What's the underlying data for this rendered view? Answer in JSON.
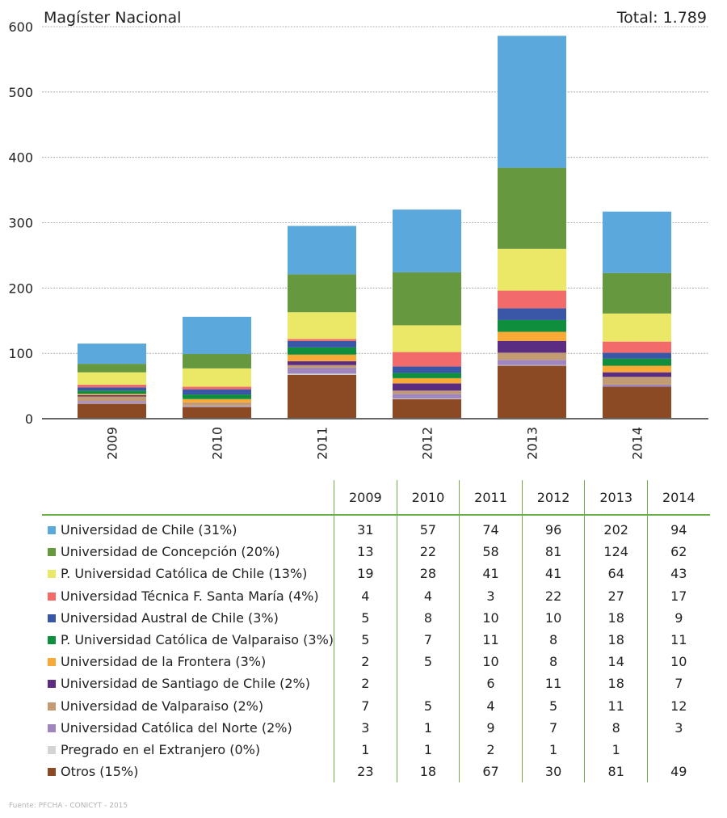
{
  "chart_data": {
    "type": "bar",
    "stacked": true,
    "title": "Magíster Nacional",
    "total_label": "Total: 1.789",
    "xlabel": "",
    "ylabel": "",
    "ylim": [
      0,
      600
    ],
    "yticks": [
      0,
      100,
      200,
      300,
      400,
      500,
      600
    ],
    "grid": true,
    "categories": [
      "2009",
      "2010",
      "2011",
      "2012",
      "2013",
      "2014"
    ],
    "series": [
      {
        "name": "Otros (15%)",
        "color": "#8b4a24",
        "values": [
          23,
          18,
          67,
          30,
          81,
          49
        ]
      },
      {
        "name": "Pregrado en el Extranjero (0%)",
        "color": "#d3d3d3",
        "values": [
          1,
          1,
          2,
          1,
          1,
          null
        ]
      },
      {
        "name": "Universidad Católica del Norte (2%)",
        "color": "#9f86be",
        "values": [
          3,
          1,
          9,
          7,
          8,
          3
        ]
      },
      {
        "name": "Universidad de Valparaiso (2%)",
        "color": "#c39b72",
        "values": [
          7,
          5,
          4,
          5,
          11,
          12
        ]
      },
      {
        "name": "Universidad de Santiago de Chile (2%)",
        "color": "#5a2d82",
        "values": [
          2,
          null,
          6,
          11,
          18,
          7
        ]
      },
      {
        "name": "Universidad de la Frontera (3%)",
        "color": "#f9a935",
        "values": [
          2,
          5,
          10,
          8,
          14,
          10
        ]
      },
      {
        "name": "P. Universidad Católica de Valparaiso (3%)",
        "color": "#0f8f3e",
        "values": [
          5,
          7,
          11,
          8,
          18,
          11
        ]
      },
      {
        "name": "Universidad Austral de Chile (3%)",
        "color": "#3a56a6",
        "values": [
          5,
          8,
          10,
          10,
          18,
          9
        ]
      },
      {
        "name": "Universidad Técnica F. Santa María (4%)",
        "color": "#f26a6a",
        "values": [
          4,
          4,
          3,
          22,
          27,
          17
        ]
      },
      {
        "name": "P. Universidad Católica de Chile (13%)",
        "color": "#ebe867",
        "values": [
          19,
          28,
          41,
          41,
          64,
          43
        ]
      },
      {
        "name": "Universidad de Concepción (20%)",
        "color": "#66993f",
        "values": [
          13,
          22,
          58,
          81,
          124,
          62
        ]
      },
      {
        "name": "Universidad de Chile (31%)",
        "color": "#5ba8dc",
        "values": [
          31,
          57,
          74,
          96,
          202,
          94
        ]
      }
    ]
  },
  "table": {
    "years": [
      "2009",
      "2010",
      "2011",
      "2012",
      "2013",
      "2014"
    ],
    "rows": [
      {
        "label": "Universidad de Chile (31%)",
        "color": "#5ba8dc",
        "values": [
          "31",
          "57",
          "74",
          "96",
          "202",
          "94"
        ]
      },
      {
        "label": "Universidad de Concepción (20%)",
        "color": "#66993f",
        "values": [
          "13",
          "22",
          "58",
          "81",
          "124",
          "62"
        ]
      },
      {
        "label": "P. Universidad Católica de Chile (13%)",
        "color": "#ebe867",
        "values": [
          "19",
          "28",
          "41",
          "41",
          "64",
          "43"
        ]
      },
      {
        "label": "Universidad Técnica F. Santa María (4%)",
        "color": "#f26a6a",
        "values": [
          "4",
          "4",
          "3",
          "22",
          "27",
          "17"
        ]
      },
      {
        "label": "Universidad Austral de Chile (3%)",
        "color": "#3a56a6",
        "values": [
          "5",
          "8",
          "10",
          "10",
          "18",
          "9"
        ]
      },
      {
        "label": "P. Universidad Católica de Valparaiso (3%)",
        "color": "#0f8f3e",
        "values": [
          "5",
          "7",
          "11",
          "8",
          "18",
          "11"
        ]
      },
      {
        "label": "Universidad de la Frontera (3%)",
        "color": "#f9a935",
        "values": [
          "2",
          "5",
          "10",
          "8",
          "14",
          "10"
        ]
      },
      {
        "label": "Universidad de Santiago de Chile (2%)",
        "color": "#5a2d82",
        "values": [
          "2",
          "",
          "6",
          "11",
          "18",
          "7"
        ]
      },
      {
        "label": "Universidad de Valparaiso (2%)",
        "color": "#c39b72",
        "values": [
          "7",
          "5",
          "4",
          "5",
          "11",
          "12"
        ]
      },
      {
        "label": "Universidad Católica del Norte (2%)",
        "color": "#9f86be",
        "values": [
          "3",
          "1",
          "9",
          "7",
          "8",
          "3"
        ]
      },
      {
        "label": "Pregrado en el Extranjero (0%)",
        "color": "#d3d3d3",
        "values": [
          "1",
          "1",
          "2",
          "1",
          "1",
          ""
        ]
      },
      {
        "label": "Otros (15%)",
        "color": "#8b4a24",
        "values": [
          "23",
          "18",
          "67",
          "30",
          "81",
          "49"
        ]
      }
    ]
  },
  "footer": "Fuente: PFCHA - CONICYT - 2015"
}
